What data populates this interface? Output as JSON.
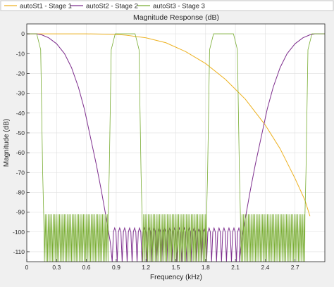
{
  "legend": {
    "placement": "top",
    "entries": [
      {
        "label": "autoSt1 - Stage 1",
        "color": "#edb120"
      },
      {
        "label": "autoSt2 - Stage 2",
        "color": "#7e2f8e"
      },
      {
        "label": "autoSt3 - Stage 3",
        "color": "#77ac30"
      }
    ]
  },
  "chart_data": {
    "type": "line",
    "title": "Magnitude Response (dB)",
    "xlabel": "Frequency (kHz)",
    "ylabel": "Magnitude (dB)",
    "xlim": [
      0,
      3.0
    ],
    "ylim": [
      -115,
      5
    ],
    "xticks": [
      0,
      0.3,
      0.6,
      0.9,
      1.2,
      1.5,
      1.8,
      2.1,
      2.4,
      2.7
    ],
    "xtick_labels": [
      "0",
      "0.3",
      "0.6",
      "0.9",
      "1.2",
      "1.5",
      "1.8",
      "2.1",
      "2.4",
      "2.7"
    ],
    "yticks": [
      0,
      -10,
      -20,
      -30,
      -40,
      -50,
      -60,
      -70,
      -80,
      -90,
      -100,
      -110
    ],
    "ytick_labels": [
      "0",
      "-10",
      "-20",
      "-30",
      "-40",
      "-50",
      "-60",
      "-70",
      "-80",
      "-90",
      "-100",
      "-110"
    ],
    "grid": true,
    "series": [
      {
        "name": "autoSt1 - Stage 1",
        "color": "#edb120",
        "x": [
          0,
          0.3,
          0.6,
          0.9,
          1.0,
          1.2,
          1.4,
          1.6,
          1.8,
          2.0,
          2.2,
          2.4,
          2.55,
          2.7,
          2.8,
          2.85
        ],
        "y": [
          0,
          0,
          0,
          -0.3,
          -0.7,
          -2,
          -4.5,
          -9,
          -15,
          -23,
          -33,
          -46,
          -58,
          -73,
          -84,
          -92
        ]
      },
      {
        "name": "autoSt2 - Stage 2",
        "color": "#7e2f8e",
        "x": [
          0,
          0.1,
          0.15,
          0.22,
          0.3,
          0.38,
          0.45,
          0.52,
          0.58,
          0.64,
          0.7,
          0.75,
          0.8,
          0.84,
          0.86,
          2.14,
          2.16,
          2.2,
          2.25,
          2.3,
          2.36,
          2.42,
          2.48,
          2.55,
          2.62,
          2.7,
          2.78,
          2.85,
          2.9,
          3.0
        ],
        "y": [
          0,
          0,
          -0.5,
          -2,
          -5,
          -10,
          -17,
          -27,
          -38,
          -52,
          -66,
          -79,
          -93,
          -105,
          -115,
          -115,
          -105,
          -93,
          -79,
          -66,
          -52,
          -38,
          -27,
          -17,
          -10,
          -5,
          -2,
          -0.5,
          0,
          0
        ]
      },
      {
        "name": "autoSt3 - Stage 3",
        "color": "#77ac30",
        "x": [
          0,
          0.1,
          0.14,
          0.16,
          0.17,
          0.82,
          0.83,
          0.85,
          0.89,
          1.09,
          1.13,
          1.15,
          1.16,
          1.81,
          1.82,
          1.84,
          1.88,
          2.08,
          2.12,
          2.14,
          2.15,
          2.8,
          2.81,
          2.83,
          2.87,
          3.0
        ],
        "y": [
          0,
          0,
          -8,
          -70,
          -91,
          -91,
          -70,
          -8,
          0,
          0,
          -8,
          -70,
          -91,
          -91,
          -70,
          -8,
          0,
          0,
          -8,
          -70,
          -91,
          -91,
          -70,
          -8,
          0,
          0
        ]
      }
    ]
  }
}
